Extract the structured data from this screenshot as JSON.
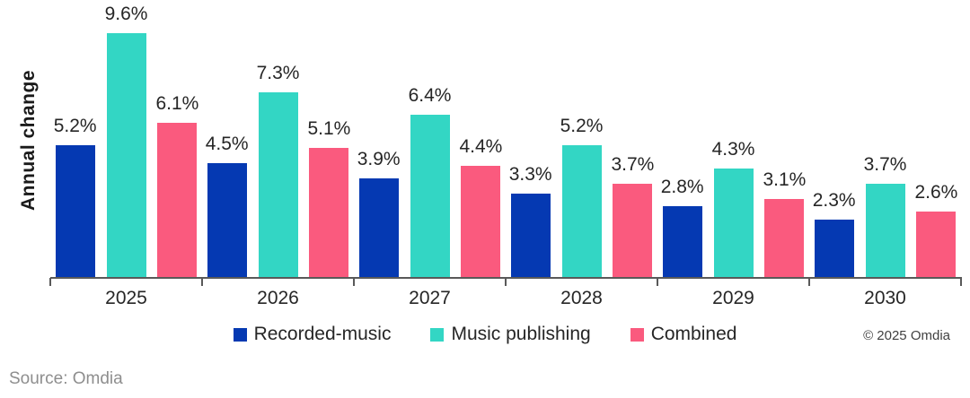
{
  "chart_data": {
    "type": "bar",
    "title": "",
    "categories": [
      "2025",
      "2026",
      "2027",
      "2028",
      "2029",
      "2030"
    ],
    "series": [
      {
        "name": "Recorded-music",
        "color": "#0539B2",
        "values": [
          5.2,
          4.5,
          3.9,
          3.3,
          2.8,
          2.3
        ]
      },
      {
        "name": "Music publishing",
        "color": "#33D6C4",
        "values": [
          9.6,
          7.3,
          6.4,
          5.2,
          4.3,
          3.7
        ]
      },
      {
        "name": "Combined",
        "color": "#FA5A7E",
        "values": [
          6.1,
          5.1,
          4.4,
          3.7,
          3.1,
          2.6
        ]
      }
    ],
    "xlabel": "",
    "ylabel": "Annual change",
    "ylim": [
      0,
      10.5
    ],
    "grid": false,
    "y_axis_visible": false,
    "data_labels": true,
    "value_suffix": "%",
    "legend_position": "bottom"
  },
  "footer": {
    "copyright": "© 2025 Omdia",
    "source": "Source: Omdia"
  },
  "style": {
    "axis_color": "#595959",
    "label_color": "#262626",
    "ylabel_color": "#1A1A1A",
    "copyright_color": "#404040",
    "source_color": "#8E8E8E",
    "background": "#FFFFFF"
  }
}
